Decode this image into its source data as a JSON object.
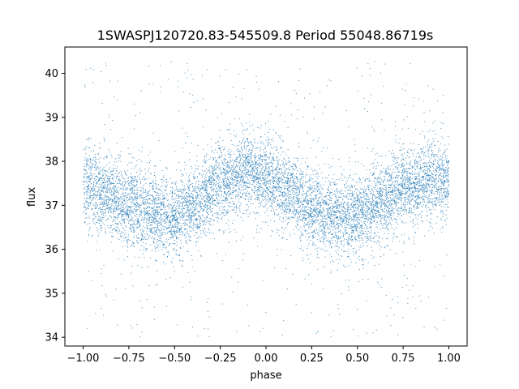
{
  "chart_data": {
    "type": "scatter",
    "title": "1SWASPJ120720.83-545509.8 Period 55048.86719s",
    "xlabel": "phase",
    "ylabel": "flux",
    "xlim": [
      -1.1,
      1.1
    ],
    "ylim": [
      33.8,
      40.6
    ],
    "x_ticks": [
      -1.0,
      -0.75,
      -0.5,
      -0.25,
      0.0,
      0.25,
      0.5,
      0.75,
      1.0
    ],
    "x_tick_labels": [
      "−1.00",
      "−0.75",
      "−0.50",
      "−0.25",
      "0.00",
      "0.25",
      "0.50",
      "0.75",
      "1.00"
    ],
    "y_ticks": [
      34,
      35,
      36,
      37,
      38,
      39,
      40
    ],
    "y_tick_labels": [
      "34",
      "35",
      "36",
      "37",
      "38",
      "39",
      "40"
    ],
    "grid": false,
    "marker_color": "#1f77b4",
    "series": [
      {
        "x_range": [
          -1.0,
          1.0
        ],
        "trend": {
          "x": [
            -1.0,
            -0.9,
            -0.75,
            -0.6,
            -0.5,
            -0.4,
            -0.25,
            -0.1,
            0.0,
            0.1,
            0.25,
            0.4,
            0.5,
            0.6,
            0.75,
            0.9,
            1.0
          ],
          "y": [
            37.45,
            37.35,
            37.0,
            36.85,
            36.75,
            36.95,
            37.5,
            37.8,
            37.6,
            37.35,
            36.95,
            36.75,
            36.75,
            37.0,
            37.4,
            37.6,
            37.55
          ]
        },
        "scatter_std": 0.45,
        "outlier_fraction": 0.06,
        "outlier_range": [
          34.0,
          40.3
        ],
        "point_count": 9000
      }
    ]
  }
}
